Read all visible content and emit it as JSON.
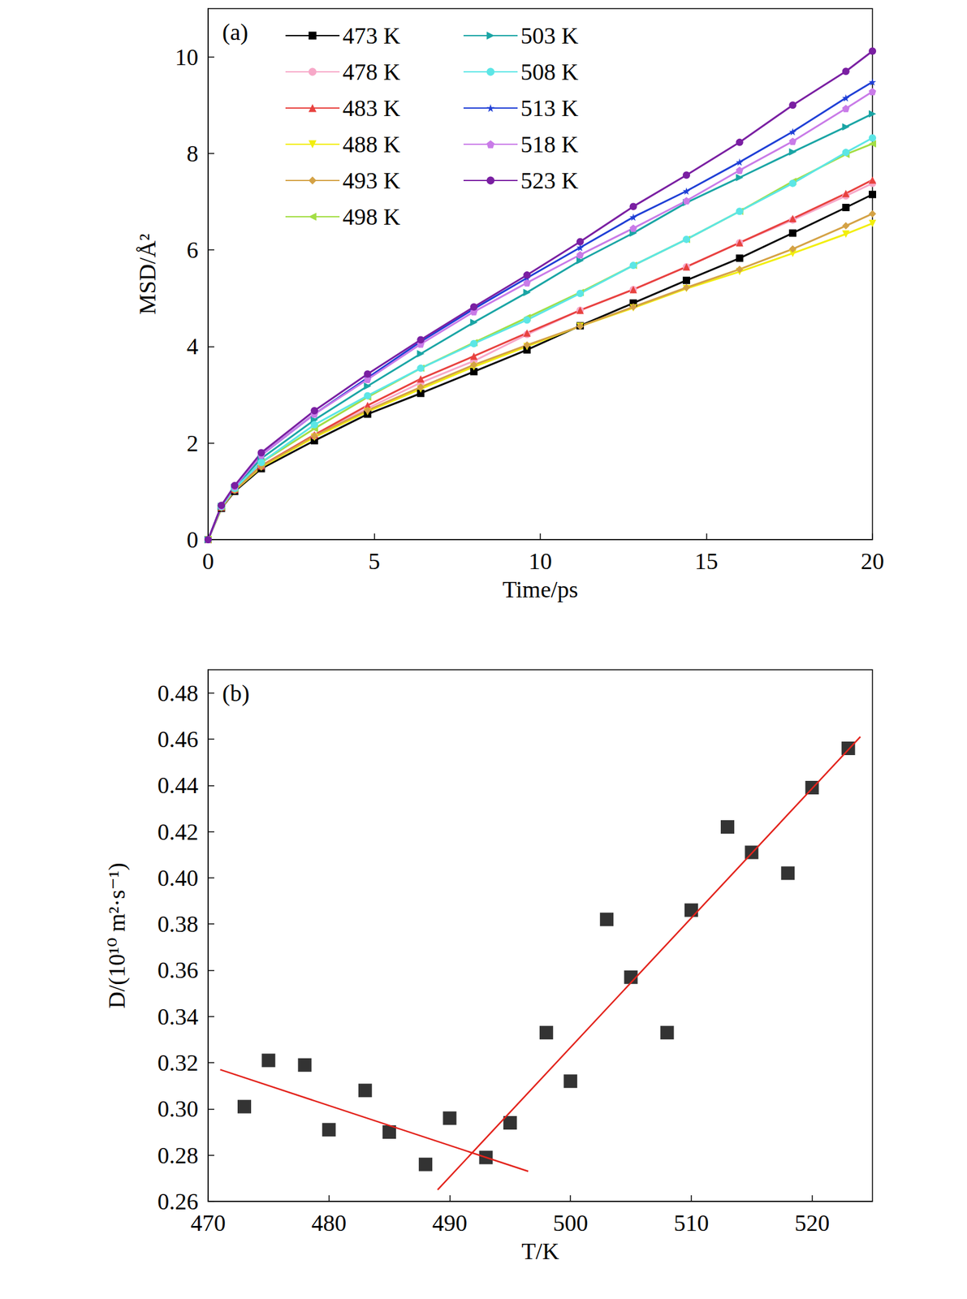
{
  "chart_data": [
    {
      "type": "line",
      "title": "(a)",
      "x_label": "Time/ps",
      "y_label": "MSD/Å²",
      "xlim": [
        0,
        20
      ],
      "xticks": [
        0,
        5,
        10,
        15,
        20
      ],
      "ylim": [
        0,
        11
      ],
      "yticks": [
        0,
        2,
        4,
        6,
        8,
        10
      ],
      "grid": false,
      "legend": "upper left",
      "x": [
        0,
        0.4,
        0.8,
        1.6,
        3.2,
        4.8,
        6.4,
        8,
        9.6,
        11.2,
        12.8,
        14.4,
        16,
        17.6,
        19.2,
        20
      ],
      "series": [
        {
          "name": "473 K",
          "color": "#000000",
          "marker": "square",
          "values": [
            0,
            0.65,
            1.0,
            1.47,
            2.05,
            2.6,
            3.03,
            3.48,
            3.93,
            4.43,
            4.9,
            5.37,
            5.83,
            6.35,
            6.88,
            7.15
          ]
        },
        {
          "name": "478 K",
          "color": "#f7a8c8",
          "marker": "circle",
          "values": [
            0,
            0.67,
            1.03,
            1.52,
            2.15,
            2.72,
            3.25,
            3.7,
            4.25,
            4.75,
            5.18,
            5.65,
            6.15,
            6.62,
            7.12,
            7.38
          ]
        },
        {
          "name": "483 K",
          "color": "#e8423f",
          "marker": "triangle",
          "values": [
            0,
            0.67,
            1.04,
            1.53,
            2.17,
            2.78,
            3.33,
            3.8,
            4.28,
            4.75,
            5.18,
            5.65,
            6.15,
            6.65,
            7.17,
            7.45
          ]
        },
        {
          "name": "488 K",
          "color": "#f2ee0c",
          "marker": "triangle_down",
          "values": [
            0,
            0.66,
            1.02,
            1.5,
            2.12,
            2.65,
            3.12,
            3.58,
            4.0,
            4.42,
            4.8,
            5.2,
            5.55,
            5.93,
            6.33,
            6.55
          ]
        },
        {
          "name": "493 K",
          "color": "#d4a245",
          "marker": "diamond",
          "values": [
            0,
            0.66,
            1.02,
            1.52,
            2.15,
            2.68,
            3.16,
            3.62,
            4.03,
            4.42,
            4.82,
            5.22,
            5.6,
            6.02,
            6.5,
            6.75
          ]
        },
        {
          "name": "498 K",
          "color": "#a3de45",
          "marker": "triangle_left",
          "values": [
            0,
            0.68,
            1.06,
            1.6,
            2.3,
            2.95,
            3.55,
            4.08,
            4.6,
            5.12,
            5.68,
            6.22,
            6.8,
            7.42,
            7.98,
            8.2
          ]
        },
        {
          "name": "503 K",
          "color": "#1aa5a5",
          "marker": "triangle_right",
          "values": [
            0,
            0.69,
            1.08,
            1.68,
            2.48,
            3.18,
            3.85,
            4.5,
            5.12,
            5.78,
            6.35,
            6.98,
            7.5,
            8.03,
            8.55,
            8.82
          ]
        },
        {
          "name": "508 K",
          "color": "#5ce6e6",
          "marker": "circle",
          "values": [
            0,
            0.68,
            1.06,
            1.6,
            2.38,
            2.98,
            3.55,
            4.06,
            4.55,
            5.1,
            5.68,
            6.22,
            6.8,
            7.38,
            8.02,
            8.32
          ]
        },
        {
          "name": "513 K",
          "color": "#1f3fd6",
          "marker": "star",
          "values": [
            0,
            0.7,
            1.1,
            1.75,
            2.6,
            3.35,
            4.1,
            4.78,
            5.42,
            6.05,
            6.68,
            7.22,
            7.82,
            8.45,
            9.15,
            9.48
          ]
        },
        {
          "name": "518 K",
          "color": "#c97be8",
          "marker": "pentagon",
          "values": [
            0,
            0.7,
            1.1,
            1.75,
            2.6,
            3.32,
            4.05,
            4.72,
            5.32,
            5.9,
            6.45,
            7.02,
            7.65,
            8.25,
            8.93,
            9.28
          ]
        },
        {
          "name": "523 K",
          "color": "#7a1fa2",
          "marker": "circle",
          "values": [
            0,
            0.71,
            1.12,
            1.8,
            2.67,
            3.43,
            4.14,
            4.82,
            5.48,
            6.17,
            6.9,
            7.55,
            8.23,
            9.0,
            9.7,
            10.12
          ]
        }
      ]
    },
    {
      "type": "scatter",
      "title": "(b)",
      "x_label": "T/K",
      "y_label": "D/(10¹⁰ m²·s⁻¹)",
      "xlim": [
        470,
        525
      ],
      "xticks": [
        470,
        480,
        490,
        500,
        510,
        520
      ],
      "ylim": [
        0.26,
        0.49
      ],
      "yticks": [
        0.26,
        0.28,
        {
          "value": 0.3,
          "label": "0.30"
        },
        0.32,
        0.34,
        0.36,
        0.38,
        {
          "value": 0.4,
          "label": "0.40"
        },
        0.42,
        0.44,
        0.46,
        0.48
      ],
      "grid": false,
      "series": [
        {
          "type": "scatter",
          "color": "#000000",
          "marker": "square",
          "x": [
            473,
            475,
            478,
            480,
            483,
            485,
            488,
            490,
            493,
            495,
            498,
            500,
            503,
            505,
            508,
            510,
            513,
            515,
            518,
            520,
            523
          ],
          "values": [
            0.301,
            0.321,
            0.319,
            0.291,
            0.308,
            0.29,
            0.276,
            0.296,
            0.279,
            0.294,
            0.333,
            0.312,
            0.382,
            0.357,
            0.333,
            0.386,
            0.422,
            0.411,
            0.402,
            0.439,
            0.456
          ]
        },
        {
          "type": "line",
          "color": "#e3231c",
          "x": [
            471,
            496.5
          ],
          "values": [
            0.317,
            0.273
          ]
        },
        {
          "type": "line",
          "color": "#e3231c",
          "x": [
            489,
            524
          ],
          "values": [
            0.265,
            0.461
          ]
        }
      ]
    }
  ]
}
